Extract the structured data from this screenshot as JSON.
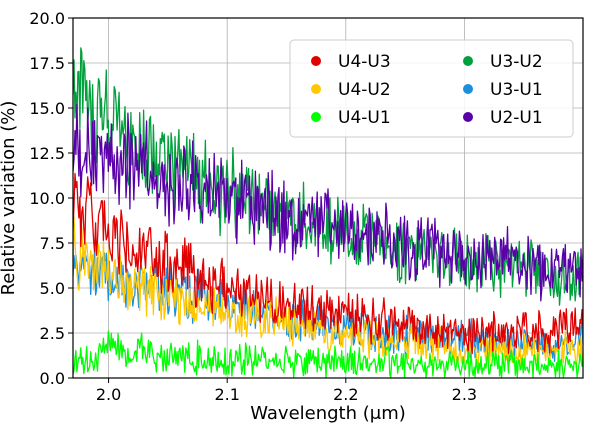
{
  "chart_data": {
    "type": "line",
    "title": "",
    "xlabel": "Wavelength (μm)",
    "ylabel": "Relative variation (%)",
    "xlim": [
      1.97,
      2.4
    ],
    "ylim": [
      0.0,
      20.0
    ],
    "xticks": [
      2.0,
      2.1,
      2.2,
      2.3
    ],
    "xtick_labels": [
      "2.0",
      "2.1",
      "2.2",
      "2.3"
    ],
    "yticks": [
      0.0,
      2.5,
      5.0,
      7.5,
      10.0,
      12.5,
      15.0,
      17.5,
      20.0
    ],
    "ytick_labels": [
      "0.0",
      "2.5",
      "5.0",
      "7.5",
      "10.0",
      "12.5",
      "15.0",
      "17.5",
      "20.0"
    ],
    "grid": true,
    "legend_position": "top-right",
    "legend_columns": 2,
    "series": [
      {
        "name": "U4-U3",
        "color": "#e00000",
        "x": [
          1.97,
          1.98,
          1.99,
          2.0,
          2.02,
          2.05,
          2.08,
          2.1,
          2.15,
          2.2,
          2.25,
          2.3,
          2.35,
          2.4
        ],
        "y": [
          10.5,
          9.2,
          8.5,
          7.8,
          7.0,
          6.2,
          5.5,
          5.0,
          4.2,
          3.5,
          3.0,
          2.5,
          2.5,
          3.0
        ]
      },
      {
        "name": "U4-U2",
        "color": "#ffc800",
        "x": [
          1.97,
          1.98,
          2.0,
          2.02,
          2.05,
          2.08,
          2.1,
          2.15,
          2.2,
          2.25,
          2.3,
          2.35,
          2.4
        ],
        "y": [
          7.0,
          6.6,
          6.0,
          5.2,
          4.6,
          4.0,
          3.6,
          3.0,
          2.4,
          2.0,
          1.6,
          1.4,
          1.5
        ]
      },
      {
        "name": "U4-U1",
        "color": "#00ff00",
        "x": [
          1.97,
          1.98,
          2.0,
          2.02,
          2.05,
          2.1,
          2.15,
          2.2,
          2.25,
          2.3,
          2.35,
          2.4
        ],
        "y": [
          0.8,
          0.8,
          2.0,
          1.6,
          1.2,
          1.0,
          1.0,
          0.9,
          0.8,
          0.8,
          0.7,
          0.7
        ]
      },
      {
        "name": "U3-U2",
        "color": "#00a03c",
        "x": [
          1.97,
          1.98,
          1.99,
          2.0,
          2.02,
          2.05,
          2.08,
          2.1,
          2.15,
          2.2,
          2.25,
          2.3,
          2.35,
          2.4
        ],
        "y": [
          16.0,
          15.4,
          14.6,
          14.0,
          13.0,
          12.0,
          11.0,
          10.3,
          9.0,
          8.0,
          7.2,
          6.5,
          6.0,
          5.6
        ]
      },
      {
        "name": "U3-U1",
        "color": "#1a8fdc",
        "x": [
          1.97,
          1.98,
          2.0,
          2.02,
          2.05,
          2.08,
          2.1,
          2.15,
          2.2,
          2.25,
          2.3,
          2.35,
          2.4
        ],
        "y": [
          6.2,
          6.0,
          5.7,
          5.3,
          4.8,
          4.4,
          4.0,
          3.4,
          2.8,
          2.4,
          2.2,
          2.0,
          2.0
        ]
      },
      {
        "name": "U2-U1",
        "color": "#5a00a8",
        "x": [
          1.97,
          1.98,
          2.0,
          2.02,
          2.05,
          2.08,
          2.1,
          2.15,
          2.2,
          2.25,
          2.3,
          2.35,
          2.4
        ],
        "y": [
          13.0,
          12.6,
          12.2,
          11.8,
          11.0,
          10.5,
          10.0,
          9.0,
          8.2,
          7.4,
          6.8,
          6.3,
          6.0
        ]
      }
    ]
  }
}
